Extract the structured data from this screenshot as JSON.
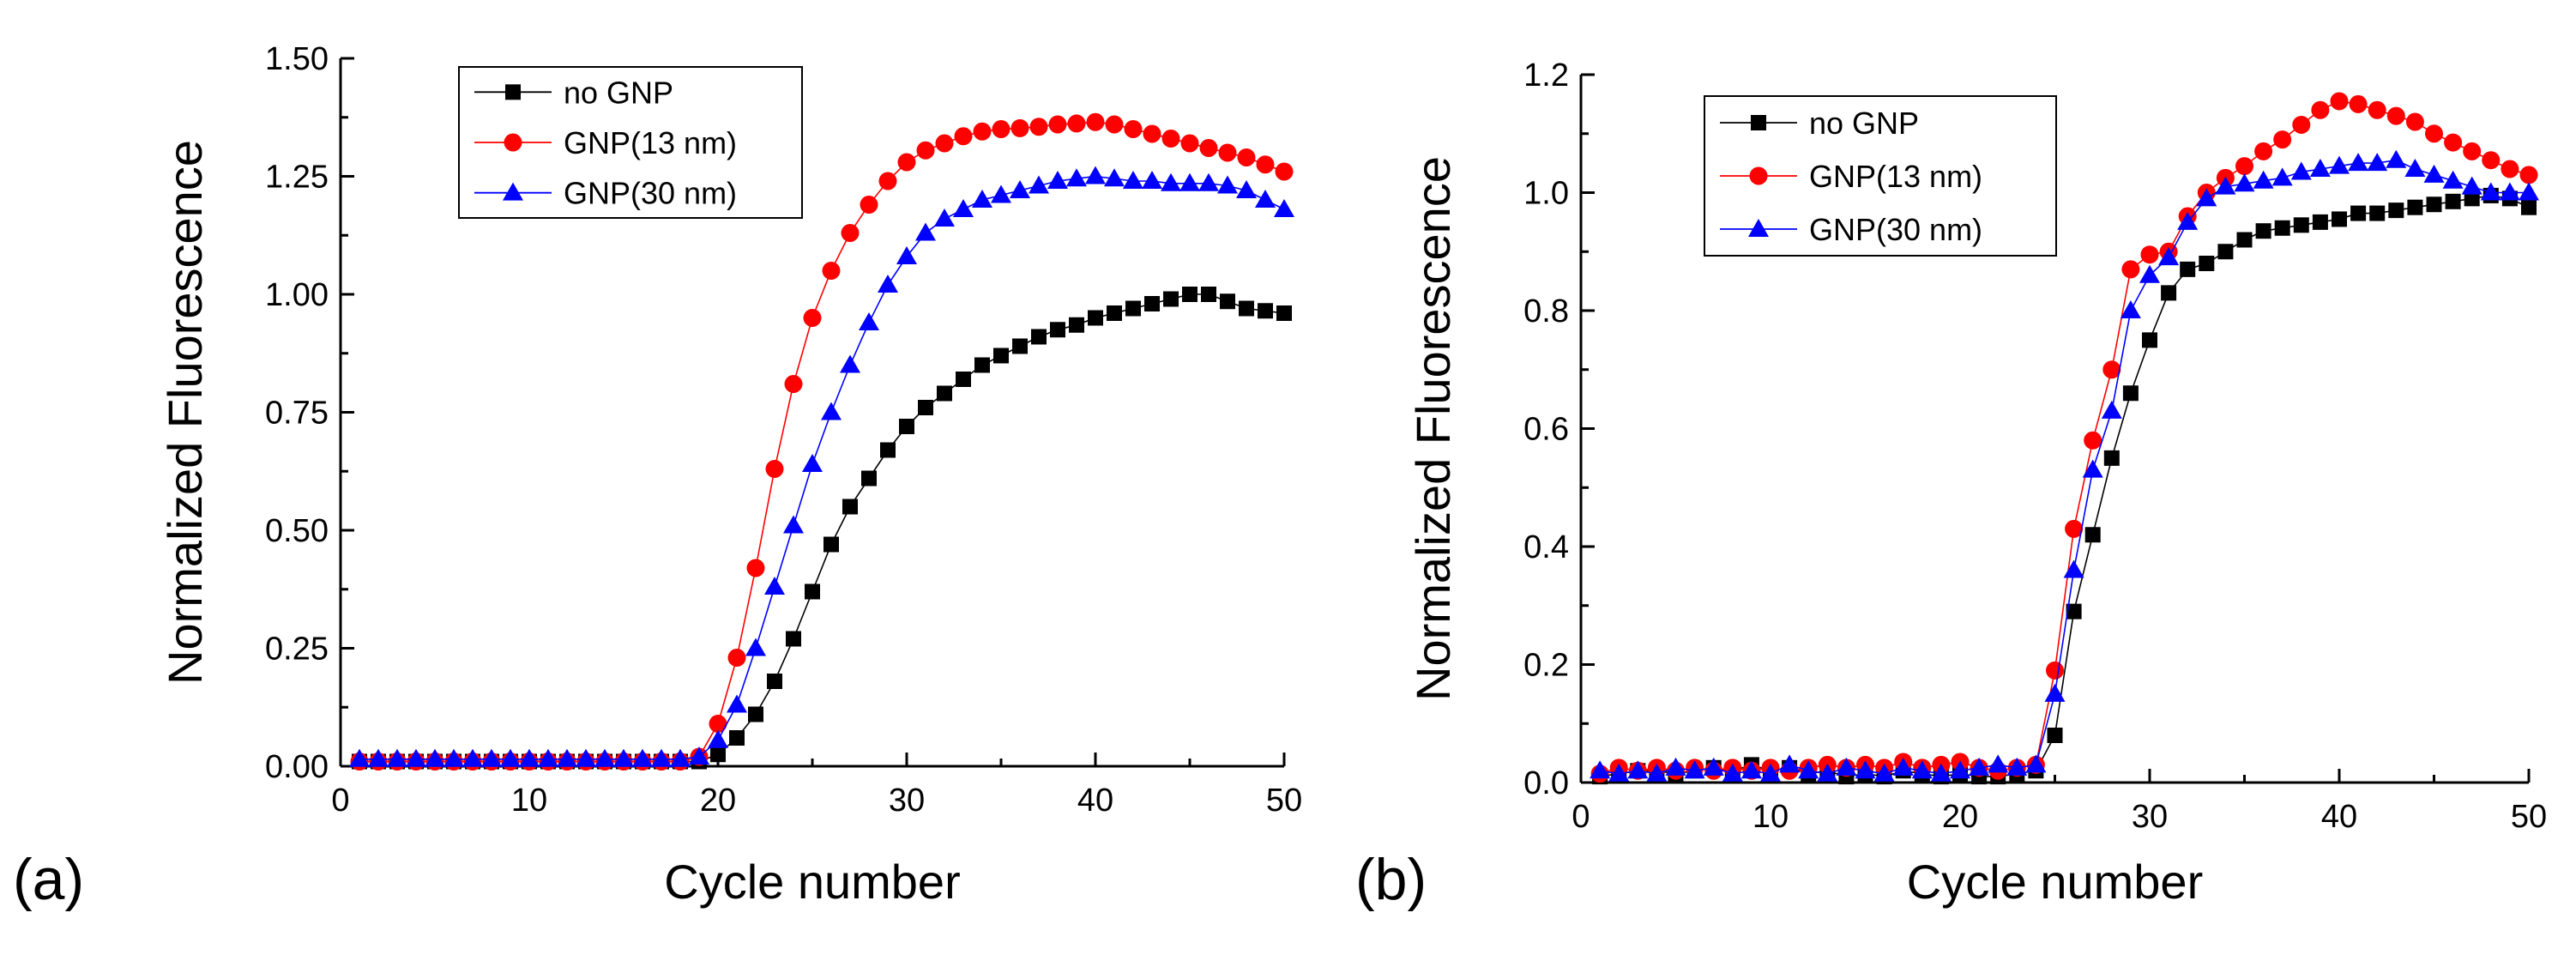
{
  "colors": {
    "no_gnp": "#000000",
    "gnp13": "#ff0000",
    "gnp30": "#0000ff",
    "axis": "#000000"
  },
  "chart_data": [
    {
      "panel": "(a)",
      "type": "line",
      "title": "",
      "xlabel": "Cycle number",
      "ylabel": "Normalized Fluorescence",
      "xlim": [
        0,
        50
      ],
      "ylim": [
        0,
        1.5
      ],
      "xticks": [
        0,
        10,
        20,
        30,
        40,
        50
      ],
      "xtick_labels": [
        "0",
        "10",
        "20",
        "30",
        "40",
        "50"
      ],
      "yticks": [
        0,
        0.25,
        0.5,
        0.75,
        1.0,
        1.25,
        1.5
      ],
      "ytick_labels": [
        "0.00",
        "0.25",
        "0.50",
        "0.75",
        "1.00",
        "1.25",
        "1.50"
      ],
      "grid": false,
      "legend_position": "top-left",
      "x": [
        1,
        2,
        3,
        4,
        5,
        6,
        7,
        8,
        9,
        10,
        11,
        12,
        13,
        14,
        15,
        16,
        17,
        18,
        19,
        20,
        21,
        22,
        23,
        24,
        25,
        26,
        27,
        28,
        29,
        30,
        31,
        32,
        33,
        34,
        35,
        36,
        37,
        38,
        39,
        40,
        41,
        42,
        43,
        44,
        45,
        46,
        47,
        48,
        49,
        50
      ],
      "series": [
        {
          "name": "no GNP",
          "marker": "square",
          "color": "#000000",
          "values": [
            0.01,
            0.01,
            0.01,
            0.01,
            0.01,
            0.01,
            0.01,
            0.01,
            0.01,
            0.01,
            0.01,
            0.01,
            0.01,
            0.01,
            0.01,
            0.01,
            0.01,
            0.01,
            0.01,
            0.025,
            0.06,
            0.11,
            0.18,
            0.27,
            0.37,
            0.47,
            0.55,
            0.61,
            0.67,
            0.72,
            0.76,
            0.79,
            0.82,
            0.85,
            0.87,
            0.89,
            0.91,
            0.925,
            0.935,
            0.95,
            0.96,
            0.97,
            0.98,
            0.99,
            1.0,
            1.0,
            0.985,
            0.97,
            0.965,
            0.96
          ]
        },
        {
          "name": "GNP(13 nm)",
          "marker": "circle",
          "color": "#ff0000",
          "values": [
            0.01,
            0.01,
            0.01,
            0.01,
            0.01,
            0.01,
            0.01,
            0.01,
            0.01,
            0.01,
            0.01,
            0.01,
            0.01,
            0.01,
            0.01,
            0.01,
            0.01,
            0.01,
            0.02,
            0.09,
            0.23,
            0.42,
            0.63,
            0.81,
            0.95,
            1.05,
            1.13,
            1.19,
            1.24,
            1.28,
            1.305,
            1.32,
            1.335,
            1.345,
            1.35,
            1.352,
            1.355,
            1.36,
            1.362,
            1.365,
            1.36,
            1.35,
            1.34,
            1.33,
            1.32,
            1.31,
            1.3,
            1.29,
            1.275,
            1.26
          ]
        },
        {
          "name": "GNP(30 nm)",
          "marker": "triangle",
          "color": "#0000ff",
          "values": [
            0.015,
            0.015,
            0.015,
            0.015,
            0.015,
            0.015,
            0.015,
            0.015,
            0.015,
            0.015,
            0.015,
            0.015,
            0.015,
            0.015,
            0.015,
            0.015,
            0.015,
            0.015,
            0.02,
            0.055,
            0.13,
            0.25,
            0.38,
            0.51,
            0.64,
            0.75,
            0.85,
            0.94,
            1.02,
            1.08,
            1.13,
            1.16,
            1.18,
            1.2,
            1.21,
            1.22,
            1.23,
            1.24,
            1.245,
            1.25,
            1.245,
            1.24,
            1.24,
            1.235,
            1.235,
            1.235,
            1.23,
            1.22,
            1.2,
            1.18
          ]
        }
      ]
    },
    {
      "panel": "(b)",
      "type": "line",
      "title": "",
      "xlabel": "Cycle number",
      "ylabel": "Normalized Fluorescence",
      "xlim": [
        0,
        50
      ],
      "ylim": [
        0,
        1.2
      ],
      "xticks": [
        0,
        10,
        20,
        30,
        40,
        50
      ],
      "xtick_labels": [
        "0",
        "10",
        "20",
        "30",
        "40",
        "50"
      ],
      "yticks": [
        0,
        0.2,
        0.4,
        0.6,
        0.8,
        1.0,
        1.2
      ],
      "ytick_labels": [
        "0.0",
        "0.2",
        "0.4",
        "0.6",
        "0.8",
        "1.0",
        "1.2"
      ],
      "grid": false,
      "legend_position": "top-left",
      "x": [
        1,
        2,
        3,
        4,
        5,
        6,
        7,
        8,
        9,
        10,
        11,
        12,
        13,
        14,
        15,
        16,
        17,
        18,
        19,
        20,
        21,
        22,
        23,
        24,
        25,
        26,
        27,
        28,
        29,
        30,
        31,
        32,
        33,
        34,
        35,
        36,
        37,
        38,
        39,
        40,
        41,
        42,
        43,
        44,
        45,
        46,
        47,
        48,
        49,
        50
      ],
      "series": [
        {
          "name": "no GNP",
          "marker": "square",
          "color": "#000000",
          "values": [
            0.01,
            0.015,
            0.02,
            0.02,
            0.015,
            0.02,
            0.025,
            0.02,
            0.03,
            0.02,
            0.025,
            0.015,
            0.02,
            0.01,
            0.015,
            0.01,
            0.02,
            0.015,
            0.01,
            0.015,
            0.01,
            0.01,
            0.015,
            0.02,
            0.08,
            0.29,
            0.42,
            0.55,
            0.66,
            0.75,
            0.83,
            0.87,
            0.88,
            0.9,
            0.92,
            0.935,
            0.94,
            0.945,
            0.95,
            0.955,
            0.965,
            0.965,
            0.97,
            0.975,
            0.98,
            0.985,
            0.99,
            0.995,
            0.99,
            0.975
          ]
        },
        {
          "name": "GNP(13 nm)",
          "marker": "circle",
          "color": "#ff0000",
          "values": [
            0.015,
            0.025,
            0.02,
            0.025,
            0.02,
            0.025,
            0.02,
            0.025,
            0.02,
            0.025,
            0.02,
            0.025,
            0.03,
            0.025,
            0.03,
            0.025,
            0.035,
            0.025,
            0.03,
            0.035,
            0.025,
            0.02,
            0.025,
            0.03,
            0.19,
            0.43,
            0.58,
            0.7,
            0.87,
            0.895,
            0.9,
            0.96,
            1.0,
            1.025,
            1.045,
            1.07,
            1.09,
            1.115,
            1.14,
            1.155,
            1.15,
            1.14,
            1.13,
            1.12,
            1.1,
            1.085,
            1.07,
            1.055,
            1.04,
            1.03
          ]
        },
        {
          "name": "GNP(30 nm)",
          "marker": "triangle",
          "color": "#0000ff",
          "values": [
            0.02,
            0.015,
            0.02,
            0.015,
            0.025,
            0.02,
            0.025,
            0.015,
            0.02,
            0.015,
            0.03,
            0.02,
            0.015,
            0.025,
            0.02,
            0.015,
            0.025,
            0.02,
            0.015,
            0.02,
            0.025,
            0.03,
            0.025,
            0.03,
            0.15,
            0.36,
            0.53,
            0.63,
            0.8,
            0.86,
            0.89,
            0.95,
            0.99,
            1.01,
            1.015,
            1.02,
            1.025,
            1.035,
            1.04,
            1.045,
            1.05,
            1.05,
            1.055,
            1.04,
            1.03,
            1.02,
            1.01,
            1.0,
            1.0,
            1.0
          ]
        }
      ]
    }
  ]
}
